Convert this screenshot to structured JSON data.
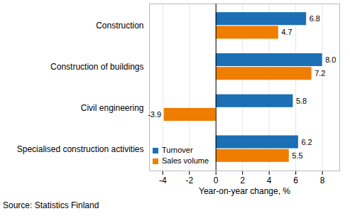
{
  "chart_data": {
    "type": "bar",
    "orientation": "horizontal",
    "categories": [
      "Construction",
      "Construction of buildings",
      "Civil engineering",
      "Specialised construction activities"
    ],
    "series": [
      {
        "name": "Turnover",
        "color": "#1a6fb5",
        "values": [
          6.8,
          8.0,
          5.8,
          6.2
        ],
        "value_labels": [
          "6.8",
          "8.0",
          "5.8",
          "6.2"
        ]
      },
      {
        "name": "Sales volume",
        "color": "#ef7d00",
        "values": [
          4.7,
          7.2,
          -3.9,
          5.5
        ]
      }
    ],
    "x_label": "Year-on-year change, %",
    "xlim": [
      -5,
      9.3
    ],
    "xticks": [
      -4,
      -2,
      0,
      2,
      4,
      6,
      8
    ],
    "grid": true,
    "data_labels": true,
    "legend": "bottom-left",
    "caption": "Source: Statistics Finland"
  }
}
